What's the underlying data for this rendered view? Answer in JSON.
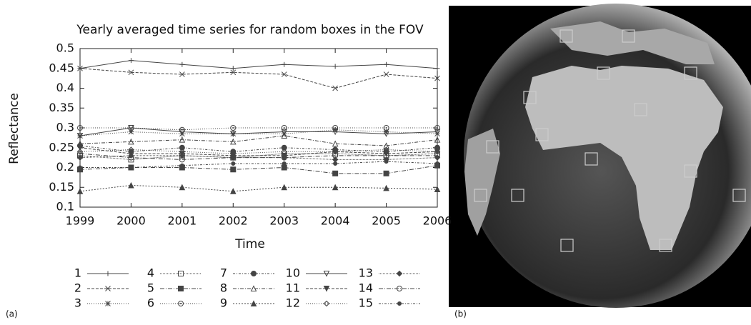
{
  "chart_data": {
    "type": "line",
    "title": "Yearly averaged time series for random boxes in the FOV",
    "x_label": "Time",
    "y_label": "Reflectance",
    "x": [
      1999,
      2000,
      2001,
      2002,
      2003,
      2004,
      2005,
      2006
    ],
    "xlim": [
      1999,
      2006
    ],
    "xticks": [
      1999,
      2000,
      2001,
      2002,
      2003,
      2004,
      2005,
      2006
    ],
    "ylim": [
      0.1,
      0.5
    ],
    "yticks": [
      0.1,
      0.15,
      0.2,
      0.25,
      0.3,
      0.35,
      0.4,
      0.45,
      0.5
    ],
    "series": [
      {
        "name": "1",
        "color": "#444",
        "marker": "plus",
        "dash": "none",
        "values": [
          0.45,
          0.47,
          0.46,
          0.45,
          0.46,
          0.455,
          0.46,
          0.45
        ]
      },
      {
        "name": "2",
        "color": "#444",
        "marker": "x",
        "dash": "4 2",
        "values": [
          0.45,
          0.44,
          0.435,
          0.44,
          0.435,
          0.4,
          0.435,
          0.425
        ]
      },
      {
        "name": "3",
        "color": "#444",
        "marker": "star",
        "dash": "1 2",
        "values": [
          0.28,
          0.29,
          0.285,
          0.285,
          0.285,
          0.295,
          0.29,
          0.285
        ]
      },
      {
        "name": "4",
        "color": "#444",
        "marker": "square",
        "dash": "1 1",
        "values": [
          0.23,
          0.22,
          0.23,
          0.225,
          0.235,
          0.235,
          0.23,
          0.235
        ]
      },
      {
        "name": "5",
        "color": "#444",
        "marker": "square-filled",
        "dash": "6 2 1 2",
        "values": [
          0.195,
          0.2,
          0.2,
          0.195,
          0.2,
          0.185,
          0.185,
          0.205
        ]
      },
      {
        "name": "6",
        "color": "#444",
        "marker": "circle-dot",
        "dash": "1 2",
        "values": [
          0.3,
          0.3,
          0.295,
          0.3,
          0.3,
          0.3,
          0.3,
          0.3
        ]
      },
      {
        "name": "7",
        "color": "#444",
        "marker": "circle-filled",
        "dash": "3 2 1 2",
        "values": [
          0.255,
          0.24,
          0.25,
          0.24,
          0.25,
          0.245,
          0.24,
          0.25
        ]
      },
      {
        "name": "8",
        "color": "#444",
        "marker": "triangle",
        "dash": "5 2 1 2",
        "values": [
          0.26,
          0.265,
          0.27,
          0.265,
          0.28,
          0.26,
          0.255,
          0.27
        ]
      },
      {
        "name": "9",
        "color": "#444",
        "marker": "triangle-filled",
        "dash": "2 2",
        "values": [
          0.14,
          0.155,
          0.15,
          0.14,
          0.15,
          0.15,
          0.148,
          0.145
        ]
      },
      {
        "name": "10",
        "color": "#444",
        "marker": "triangle-down",
        "dash": "none",
        "values": [
          0.28,
          0.3,
          0.29,
          0.285,
          0.29,
          0.29,
          0.285,
          0.29
        ]
      },
      {
        "name": "11",
        "color": "#444",
        "marker": "triangle-down-filled",
        "dash": "4 2",
        "values": [
          0.25,
          0.235,
          0.235,
          0.23,
          0.23,
          0.24,
          0.235,
          0.24
        ]
      },
      {
        "name": "12",
        "color": "#444",
        "marker": "diamond",
        "dash": "1 2",
        "values": [
          0.24,
          0.245,
          0.24,
          0.235,
          0.24,
          0.24,
          0.245,
          0.24
        ]
      },
      {
        "name": "13",
        "color": "#444",
        "marker": "diamond-filled",
        "dash": "1 1",
        "values": [
          0.225,
          0.23,
          0.23,
          0.225,
          0.225,
          0.22,
          0.22,
          0.225
        ]
      },
      {
        "name": "14",
        "color": "#444",
        "marker": "circle",
        "dash": "6 2 1 2",
        "values": [
          0.235,
          0.225,
          0.22,
          0.225,
          0.225,
          0.23,
          0.23,
          0.23
        ]
      },
      {
        "name": "15",
        "color": "#444",
        "marker": "dot",
        "dash": "3 2 1 2",
        "values": [
          0.2,
          0.2,
          0.205,
          0.21,
          0.21,
          0.21,
          0.215,
          0.21
        ]
      }
    ]
  },
  "panel_labels": [
    "(a)",
    "(b)"
  ]
}
